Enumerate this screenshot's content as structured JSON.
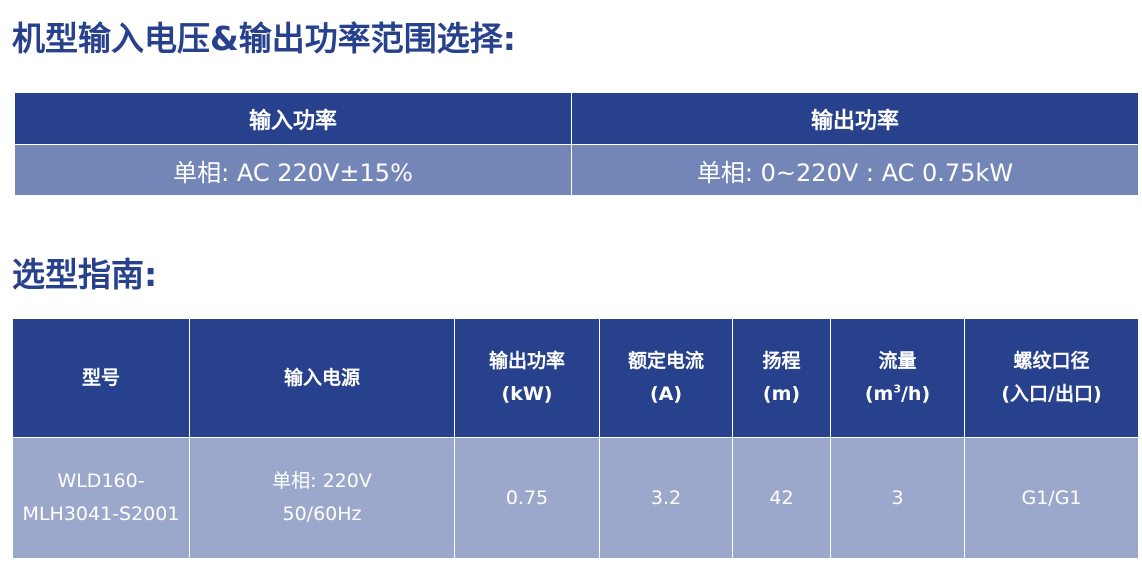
{
  "section1": {
    "title": "机型输入电压&输出功率范围选择:"
  },
  "power_table": {
    "headers": [
      "输入功率",
      "输出功率"
    ],
    "row": [
      "单相:  AC 220V±15%",
      "单相:  0~220V : AC 0.75kW"
    ]
  },
  "section2": {
    "title": "选型指南:"
  },
  "spec_table": {
    "headers": {
      "model": "型号",
      "input_power": "输入电源",
      "output_power_name": "输出功率",
      "output_power_unit": "(kW)",
      "current_name": "额定电流",
      "current_unit": "(A)",
      "head_name": "扬程",
      "head_unit": "(m)",
      "flow_name": "流量",
      "flow_unit_pre": "(m",
      "flow_unit_sup": "3",
      "flow_unit_post": "/h)",
      "thread_name": "螺纹口径",
      "thread_unit": "(入口/出口)"
    },
    "rows": [
      {
        "model_line1": "WLD160-",
        "model_line2": "MLH3041-S2001",
        "input_line1": "单相:  220V",
        "input_line2": "50/60Hz",
        "output_power": "0.75",
        "current": "3.2",
        "head": "42",
        "flow": "3",
        "thread": "G1/G1"
      }
    ]
  },
  "colors": {
    "title": "#27418c",
    "header_bg": "#27418c",
    "row_bg_1": "#7485b8",
    "row_bg_2": "#9ba8cb"
  }
}
